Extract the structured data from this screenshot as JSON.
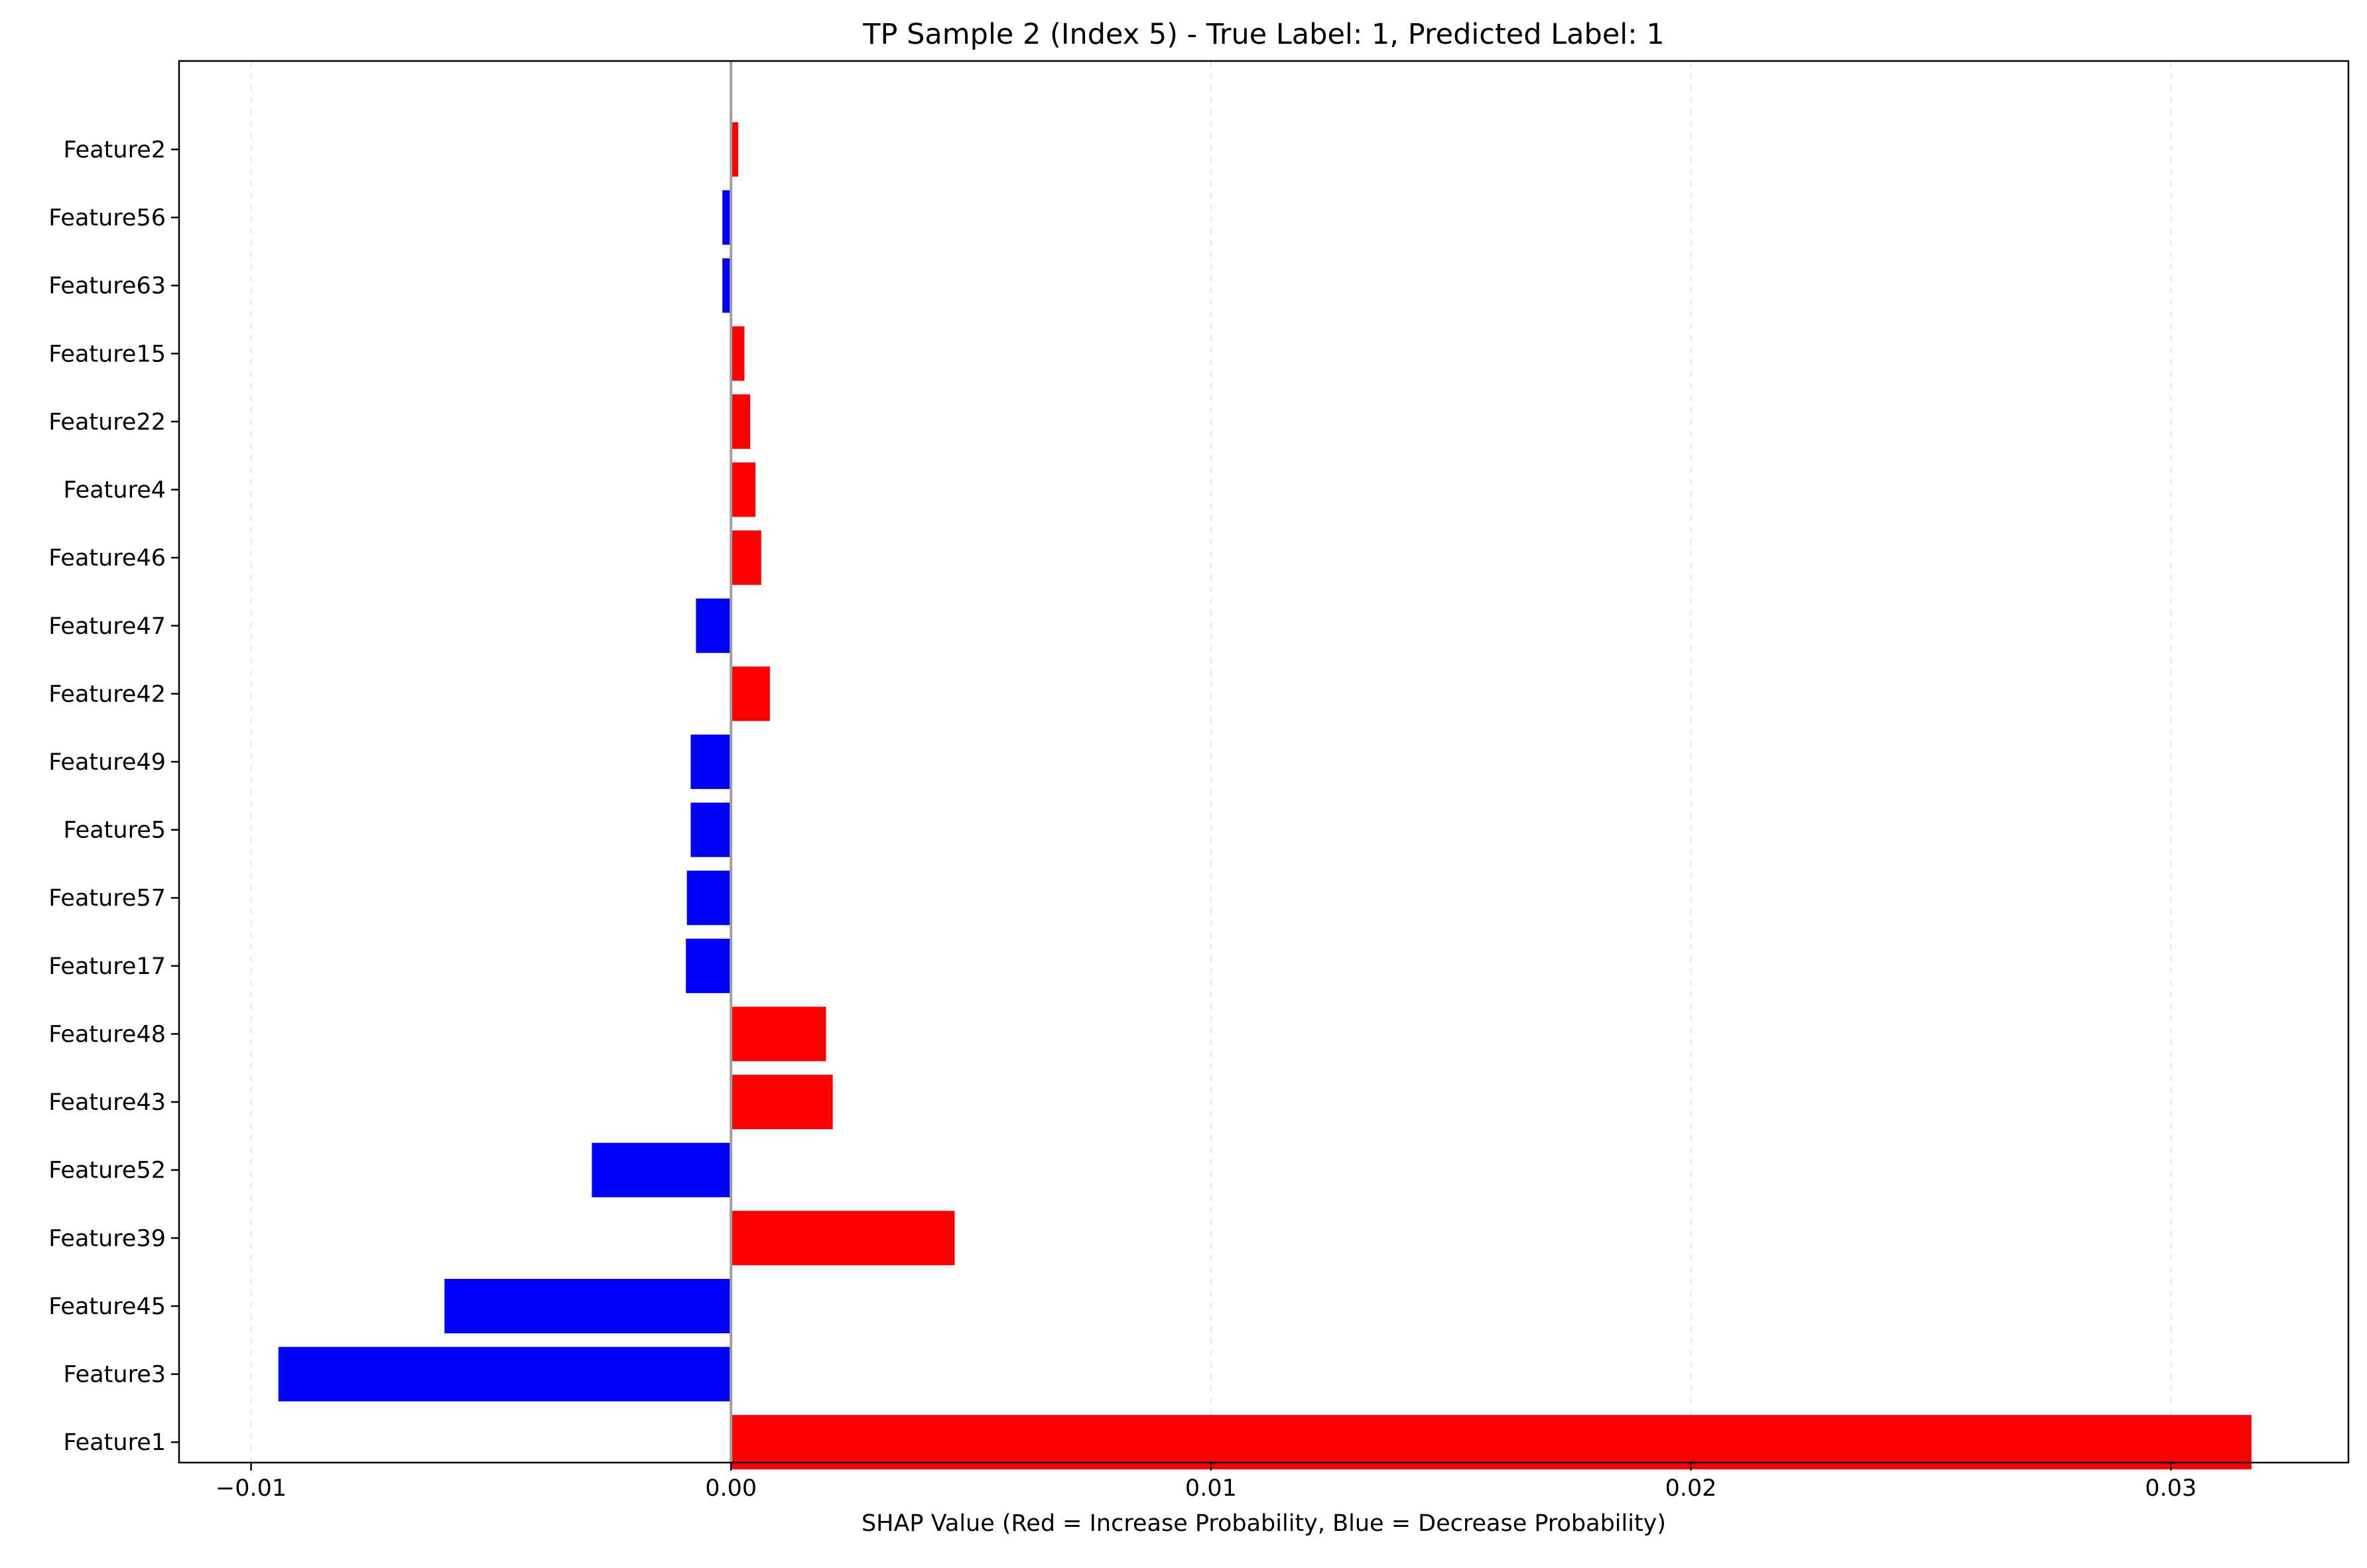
{
  "chart_data": {
    "type": "bar",
    "orientation": "horizontal",
    "title": "TP Sample 2 (Index 5) - True Label: 1, Predicted Label: 1",
    "xlabel": "SHAP Value (Red = Increase Probability, Blue = Decrease Probability)",
    "ylabel": "",
    "xlim": [
      -0.0115,
      0.0337
    ],
    "xticks": [
      -0.01,
      0.0,
      0.01,
      0.02,
      0.03
    ],
    "xtick_labels": [
      "−0.01",
      "0.00",
      "0.01",
      "0.02",
      "0.03"
    ],
    "grid": "x, dashed",
    "colors": {
      "positive": "#ff0000",
      "negative": "#0000ff",
      "zero_line": "#a0a0a0",
      "grid": "#e6e6e6"
    },
    "categories": [
      "Feature2",
      "Feature56",
      "Feature63",
      "Feature15",
      "Feature22",
      "Feature4",
      "Feature46",
      "Feature47",
      "Feature42",
      "Feature49",
      "Feature5",
      "Feature57",
      "Feature17",
      "Feature48",
      "Feature43",
      "Feature52",
      "Feature39",
      "Feature45",
      "Feature3",
      "Feature1"
    ],
    "values": [
      0.00015,
      -0.00018,
      -0.00018,
      0.00028,
      0.0004,
      0.00051,
      0.00063,
      -0.00073,
      0.00081,
      -0.00084,
      -0.00084,
      -0.00092,
      -0.00094,
      0.00198,
      0.00212,
      -0.0029,
      0.00466,
      -0.00597,
      -0.00943,
      0.03168
    ]
  }
}
